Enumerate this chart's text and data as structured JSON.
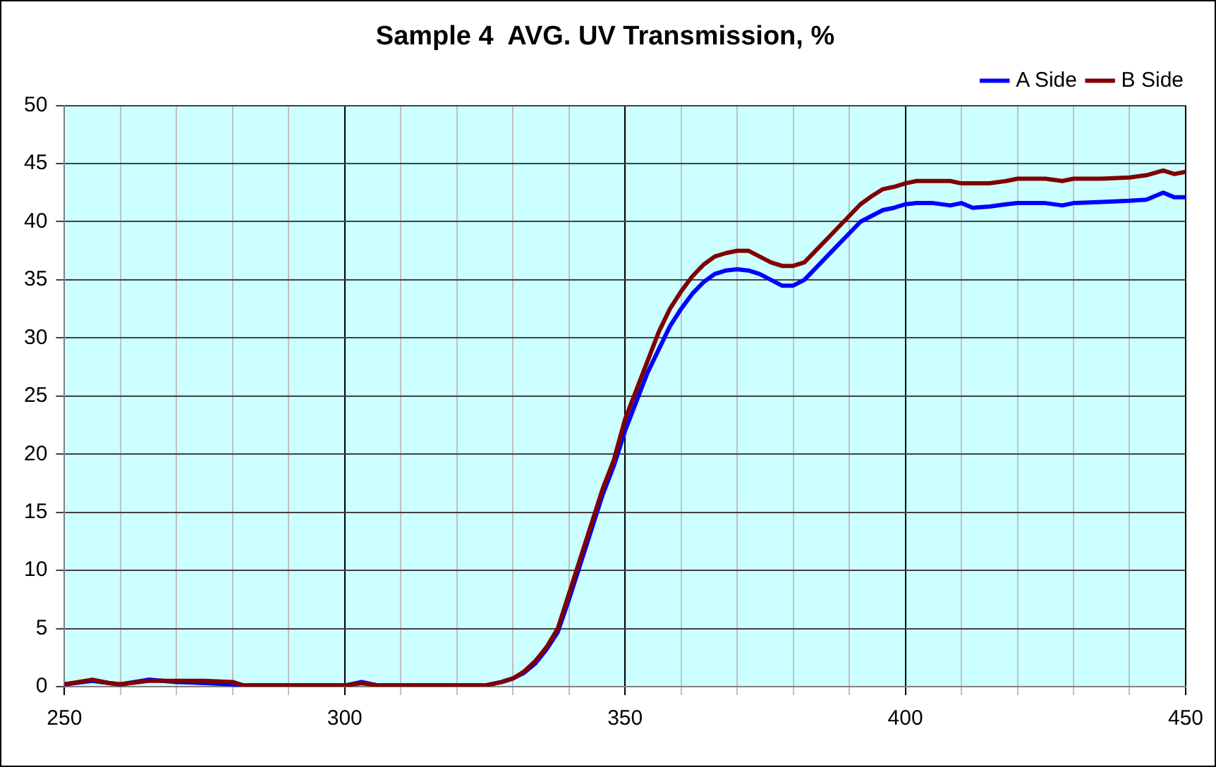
{
  "chart_data": {
    "type": "line",
    "title": "Sample 4  AVG. UV Transmission, %",
    "x": [
      250,
      255,
      258,
      260,
      265,
      270,
      275,
      280,
      282,
      300,
      303,
      306,
      325,
      328,
      330,
      332,
      334,
      336,
      338,
      340,
      342,
      344,
      346,
      348,
      350,
      352,
      354,
      356,
      358,
      360,
      362,
      364,
      366,
      368,
      370,
      372,
      374,
      376,
      378,
      380,
      382,
      384,
      386,
      388,
      390,
      392,
      394,
      396,
      398,
      400,
      402,
      405,
      408,
      410,
      412,
      415,
      418,
      420,
      425,
      428,
      430,
      435,
      440,
      443,
      446,
      448,
      450
    ],
    "series": [
      {
        "name": "A Side",
        "color": "#0000ff",
        "values": [
          0.2,
          0.5,
          0.3,
          0.2,
          0.6,
          0.4,
          0.3,
          0.2,
          0.1,
          0.1,
          0.4,
          0.1,
          0.1,
          0.4,
          0.7,
          1.2,
          2,
          3.2,
          4.7,
          7.5,
          10.5,
          13.5,
          16.5,
          19,
          22,
          24.5,
          27,
          29,
          31,
          32.5,
          33.8,
          34.8,
          35.5,
          35.8,
          35.9,
          35.8,
          35.5,
          35,
          34.5,
          34.5,
          35,
          36,
          37,
          38,
          39,
          40,
          40.5,
          41,
          41.2,
          41.5,
          41.6,
          41.6,
          41.4,
          41.6,
          41.2,
          41.3,
          41.5,
          41.6,
          41.6,
          41.4,
          41.6,
          41.7,
          41.8,
          41.9,
          42.5,
          42.1,
          42.1
        ]
      },
      {
        "name": "B Side",
        "color": "#800000",
        "values": [
          0.2,
          0.6,
          0.3,
          0.2,
          0.5,
          0.5,
          0.5,
          0.4,
          0.1,
          0.1,
          0.3,
          0.1,
          0.1,
          0.4,
          0.7,
          1.3,
          2.2,
          3.4,
          5,
          8,
          11,
          14,
          17,
          19.5,
          23,
          25.5,
          28,
          30.5,
          32.5,
          34,
          35.3,
          36.3,
          37,
          37.3,
          37.5,
          37.5,
          37,
          36.5,
          36.2,
          36.2,
          36.5,
          37.5,
          38.5,
          39.5,
          40.5,
          41.5,
          42.2,
          42.8,
          43,
          43.3,
          43.5,
          43.5,
          43.5,
          43.3,
          43.3,
          43.3,
          43.5,
          43.7,
          43.7,
          43.5,
          43.7,
          43.7,
          43.8,
          44,
          44.4,
          44.1,
          44.3
        ]
      }
    ],
    "xlim": [
      250,
      450
    ],
    "xticks": [
      250,
      {
        "value": 260,
        "label": null
      },
      {
        "value": 270,
        "label": null
      },
      {
        "value": 280,
        "label": null
      },
      {
        "value": 290,
        "label": null
      },
      300,
      {
        "value": 310,
        "label": null
      },
      {
        "value": 320,
        "label": null
      },
      {
        "value": 330,
        "label": null
      },
      {
        "value": 340,
        "label": null
      },
      350,
      {
        "value": 360,
        "label": null
      },
      {
        "value": 370,
        "label": null
      },
      {
        "value": 380,
        "label": null
      },
      {
        "value": 390,
        "label": null
      },
      400,
      {
        "value": 410,
        "label": null
      },
      {
        "value": 420,
        "label": null
      },
      {
        "value": 430,
        "label": null
      },
      {
        "value": 440,
        "label": null
      },
      450
    ],
    "ylim": [
      0,
      50
    ],
    "yticks": [
      0,
      5,
      10,
      15,
      20,
      25,
      30,
      35,
      40,
      45,
      50
    ],
    "grid": true,
    "legend": "top right",
    "marker": "none",
    "line_style": "solid"
  }
}
